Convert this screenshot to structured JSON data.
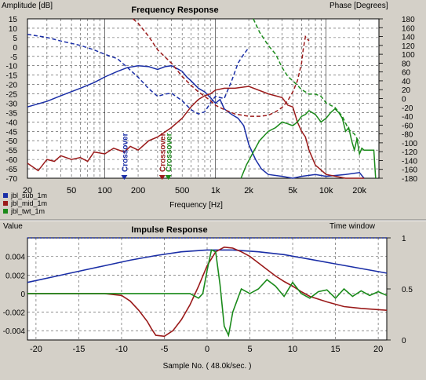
{
  "chart_data": [
    {
      "type": "line",
      "title": "Frequency Response",
      "ylabel_left": "Amplitude [dB]",
      "ylabel_right": "Phase [Degrees]",
      "xlabel": "Frequency [Hz]",
      "xscale": "log",
      "xlim": [
        20,
        30000
      ],
      "ylim_left": [
        -70,
        15
      ],
      "ylim_right": [
        -180,
        180
      ],
      "x_ticks": [
        20,
        50,
        100,
        200,
        500,
        1000,
        2000,
        5000,
        10000,
        20000
      ],
      "x_tick_labels": [
        "20",
        "50",
        "100",
        "200",
        "500",
        "1k",
        "2k",
        "5k",
        "10k",
        "20k"
      ],
      "y_ticks_left": [
        "15",
        "10",
        "5",
        "0",
        "-5",
        "-10",
        "-15",
        "-20",
        "-25",
        "-30",
        "-35",
        "-40",
        "-45",
        "-50",
        "-55",
        "-60",
        "-65",
        "-70"
      ],
      "y_ticks_right": [
        "180",
        "160",
        "140",
        "120",
        "100",
        "80",
        "60",
        "40",
        "20",
        "0",
        "-20",
        "-40",
        "-60",
        "-80",
        "-100",
        "-120",
        "-140",
        "-160",
        "-180"
      ],
      "grid": true,
      "legend_position": "below-left",
      "series": [
        {
          "name": "jbl_sub_1m",
          "color": "#1a2ea6",
          "kind": "amplitude",
          "x": [
            20,
            30,
            40,
            60,
            80,
            100,
            130,
            160,
            200,
            250,
            300,
            350,
            400,
            450,
            500,
            550,
            600,
            700,
            800,
            900,
            1000,
            1100,
            1200,
            1400,
            1600,
            1800,
            2000,
            2300,
            2600,
            3000,
            4000,
            5000,
            6000,
            8000,
            10000,
            15000,
            20000,
            22000
          ],
          "y": [
            -32,
            -29,
            -26,
            -22,
            -19,
            -16,
            -13,
            -11,
            -10,
            -10.5,
            -12,
            -10.5,
            -10,
            -11.5,
            -13,
            -16,
            -18,
            -22,
            -24,
            -27,
            -30,
            -28,
            -33,
            -36,
            -38,
            -42,
            -52,
            -60,
            -65,
            -68,
            -69,
            -70,
            -69,
            -68,
            -69,
            -68,
            -67,
            -70
          ]
        },
        {
          "name": "jbl_sub_1m",
          "color": "#1a2ea6",
          "kind": "phase",
          "x": [
            20,
            30,
            40,
            60,
            80,
            100,
            130,
            160,
            200,
            250,
            300,
            350,
            400,
            500,
            600,
            700,
            800,
            900,
            1000,
            1200,
            1400,
            1600,
            1800,
            2000
          ],
          "y": [
            145,
            138,
            130,
            120,
            110,
            100,
            90,
            70,
            48,
            22,
            5,
            10,
            12,
            -5,
            -25,
            -35,
            -30,
            -10,
            5,
            0,
            40,
            80,
            100,
            115
          ]
        },
        {
          "name": "jbl_mid_1m",
          "color": "#9a1a1a",
          "kind": "amplitude",
          "x": [
            20,
            25,
            30,
            35,
            40,
            50,
            60,
            70,
            80,
            100,
            120,
            150,
            170,
            200,
            250,
            300,
            400,
            500,
            600,
            700,
            800,
            900,
            1000,
            1200,
            1500,
            2000,
            3000,
            4000,
            4500,
            5000,
            5500,
            6000,
            6500,
            7000,
            8000,
            10000,
            15000,
            20000,
            22000
          ],
          "y": [
            -62,
            -66,
            -60,
            -61,
            -58,
            -60,
            -59,
            -61,
            -56,
            -57,
            -54,
            -56,
            -53,
            -55,
            -50,
            -48,
            -43,
            -38,
            -32,
            -28,
            -26,
            -25,
            -23,
            -22,
            -22,
            -21,
            -25,
            -27,
            -31,
            -32,
            -40,
            -45,
            -48,
            -55,
            -63,
            -68,
            -70,
            -70,
            -70
          ]
        },
        {
          "name": "jbl_mid_1m",
          "color": "#9a1a1a",
          "kind": "phase",
          "x": [
            180,
            200,
            250,
            300,
            400,
            500,
            600,
            700,
            800,
            900,
            1000,
            1200,
            1500,
            2000,
            2500,
            3000,
            3500,
            4000,
            4500,
            5000,
            5500,
            6000,
            6200,
            6500,
            7000
          ],
          "y": [
            180,
            170,
            140,
            110,
            80,
            50,
            30,
            15,
            5,
            -5,
            -15,
            -25,
            -35,
            -40,
            -40,
            -38,
            -30,
            -20,
            -5,
            15,
            40,
            80,
            110,
            140,
            130
          ]
        },
        {
          "name": "jbl_twt_1m",
          "color": "#1a8a1a",
          "kind": "amplitude",
          "x": [
            1700,
            1900,
            2200,
            2500,
            3000,
            3500,
            4000,
            4500,
            5000,
            5500,
            6000,
            6500,
            7000,
            8000,
            9000,
            10000,
            11000,
            12000,
            13000,
            14000,
            15000,
            16000,
            17000,
            18000,
            19000,
            20000,
            21000,
            22000,
            23000,
            25000,
            27000,
            28000
          ],
          "y": [
            -70,
            -63,
            -56,
            -50,
            -45,
            -43,
            -40,
            -41,
            -42,
            -40,
            -37,
            -36,
            -34,
            -36,
            -40,
            -38,
            -35,
            -33,
            -35,
            -38,
            -45,
            -43,
            -50,
            -55,
            -49,
            -57,
            -54,
            -55,
            -55,
            -55,
            -55,
            -70
          ]
        },
        {
          "name": "jbl_twt_1m",
          "color": "#1a8a1a",
          "kind": "phase",
          "x": [
            2200,
            2500,
            3000,
            3500,
            4000,
            4500,
            5000,
            5500,
            6000,
            6500,
            7000,
            8000,
            9000,
            10000,
            12000,
            14000,
            16000,
            18000,
            20000
          ],
          "y": [
            180,
            150,
            120,
            100,
            70,
            50,
            40,
            30,
            20,
            15,
            10,
            10,
            5,
            -10,
            -20,
            -40,
            -70,
            -80,
            -100
          ]
        }
      ],
      "annotations": [
        "Crossover",
        "Crossover",
        "Crossover"
      ]
    },
    {
      "type": "line",
      "title": "Impulse Response",
      "ylabel_left": "Value",
      "ylabel_right": "Time window",
      "xlabel": "Sample No. ( 48.0k/sec. )",
      "xlim": [
        -21,
        21
      ],
      "ylim_left": [
        -0.005,
        0.006
      ],
      "ylim_right": [
        0,
        1
      ],
      "x_ticks": [
        "-20",
        "-15",
        "-10",
        "-5",
        "0",
        "5",
        "10",
        "15",
        "20"
      ],
      "y_ticks_left": [
        "0.004",
        "0.002",
        "0",
        "-0.002",
        "-0.004"
      ],
      "y_ticks_right": [
        "1",
        "0.5",
        "0"
      ],
      "grid": true,
      "series": [
        {
          "name": "jbl_sub_1m",
          "color": "#1a2ea6",
          "x": [
            -21,
            -18,
            -15,
            -12,
            -9,
            -6,
            -3,
            0,
            3,
            6,
            9,
            12,
            15,
            18,
            21
          ],
          "y": [
            0.0012,
            0.0018,
            0.0024,
            0.003,
            0.0036,
            0.0041,
            0.0045,
            0.0047,
            0.0047,
            0.0045,
            0.0042,
            0.0037,
            0.0032,
            0.0027,
            0.0022
          ]
        },
        {
          "name": "jbl_mid_1m",
          "color": "#9a1a1a",
          "x": [
            -21,
            -12,
            -10,
            -9,
            -8,
            -7,
            -6.5,
            -6,
            -5,
            -4,
            -3,
            -2,
            -1,
            0,
            1,
            2,
            3,
            4,
            5,
            6,
            7,
            8,
            9,
            10,
            11,
            12,
            14,
            16,
            18,
            21
          ],
          "y": [
            0,
            0,
            -0.0002,
            -0.0008,
            -0.0018,
            -0.003,
            -0.0038,
            -0.0045,
            -0.0046,
            -0.004,
            -0.0028,
            -0.0012,
            0.0008,
            0.003,
            0.0045,
            0.005,
            0.0049,
            0.0045,
            0.004,
            0.0033,
            0.0026,
            0.0019,
            0.0013,
            0.0008,
            0.0002,
            -0.0003,
            -0.0009,
            -0.0014,
            -0.0016,
            -0.0018
          ]
        },
        {
          "name": "jbl_twt_1m",
          "color": "#1a8a1a",
          "x": [
            -21,
            -4,
            -2,
            -1,
            -0.5,
            0,
            0.5,
            1,
            1.5,
            2,
            2.5,
            3,
            4,
            5,
            6,
            7,
            8,
            9,
            10,
            11,
            12,
            13,
            14,
            15,
            16,
            17,
            18,
            19,
            20,
            21
          ],
          "y": [
            0,
            0,
            0,
            -0.0005,
            0,
            0.0025,
            0.0047,
            0.0045,
            0.001,
            -0.0035,
            -0.0045,
            -0.002,
            0.0005,
            0,
            0.0005,
            0.0015,
            0.0008,
            -0.0003,
            0.0012,
            0,
            -0.0005,
            0.0002,
            0.0004,
            -0.0005,
            0.0005,
            -0.0003,
            0.0003,
            -0.0002,
            0.0002,
            -0.0002
          ]
        },
        {
          "name": "Time window",
          "color": "#1a2ea6",
          "kind": "window",
          "x": [
            -21,
            21
          ],
          "y": [
            1,
            1
          ]
        }
      ]
    }
  ],
  "legend": [
    "jbl_sub_1m",
    "jbl_mid_1m",
    "jbl_twt_1m"
  ],
  "legend_colors": [
    "#1a2ea6",
    "#9a1a1a",
    "#1a8a1a"
  ]
}
